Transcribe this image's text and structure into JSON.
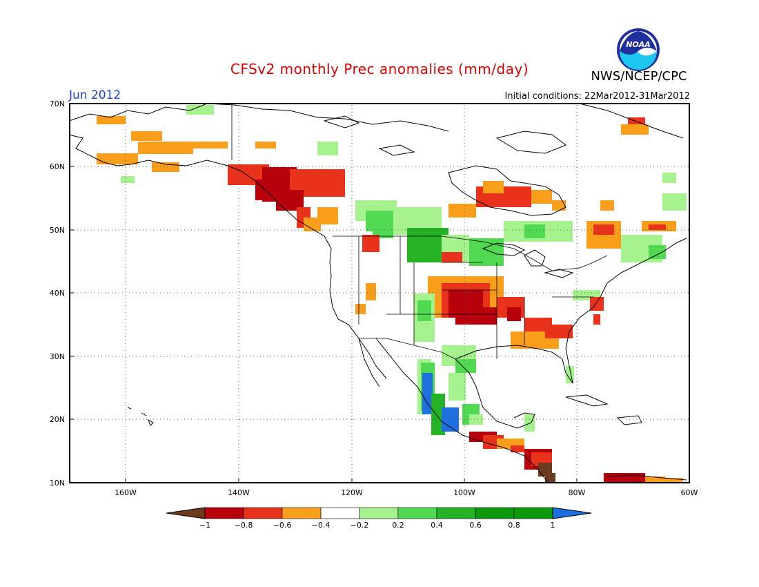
{
  "title": "CFSv2 monthly Prec anomalies (mm/day)",
  "month_label": "Jun 2012",
  "initial_conditions": "Initial conditions: 22Mar2012-31Mar2012",
  "agency": "NWS/NCEP/CPC",
  "logo_text": "NOAA",
  "lat_labels": [
    "70N",
    "60N",
    "50N",
    "40N",
    "30N",
    "20N",
    "10N"
  ],
  "lon_labels": [
    "160W",
    "140W",
    "120W",
    "100W",
    "80W",
    "60W"
  ],
  "colorbar": {
    "labels": [
      "-1",
      "-0.8",
      "-0.6",
      "-0.4",
      "-0.2",
      "0.2",
      "0.4",
      "0.6",
      "0.8",
      "1"
    ],
    "colors": [
      "#6b3a1f",
      "#b8000d",
      "#e8321c",
      "#f89e1a",
      "#ffffff",
      "#a6f28f",
      "#52d952",
      "#25b325",
      "#0c9a0c",
      "#1e6fe0"
    ]
  }
}
